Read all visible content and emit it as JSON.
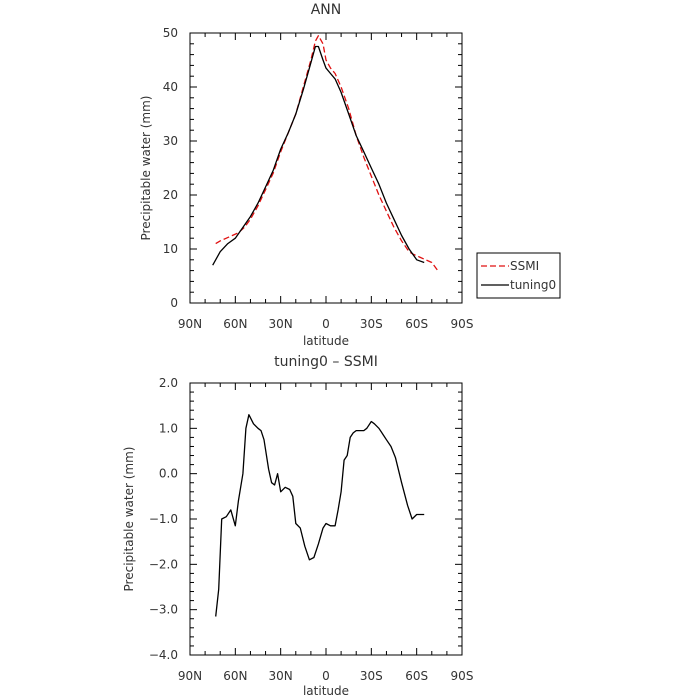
{
  "chart_data": [
    {
      "type": "line",
      "title": "ANN",
      "xlabel": "latitude",
      "ylabel": "Precipitable water (mm)",
      "xlim": [
        90,
        -90
      ],
      "ylim": [
        0,
        50
      ],
      "yticks": [
        "0",
        "10",
        "20",
        "30",
        "40",
        "50"
      ],
      "xtick_values": [
        90,
        60,
        30,
        0,
        -30,
        -60,
        -90
      ],
      "xticks": [
        "90N",
        "60N",
        "30N",
        "0",
        "30S",
        "60S",
        "90S"
      ],
      "grid": false,
      "legend": "right",
      "series": [
        {
          "name": "SSMI",
          "color": "#e01010",
          "dash": "dashed",
          "x": [
            73,
            70,
            66,
            62,
            58,
            54,
            50,
            45,
            40,
            35,
            30,
            25,
            20,
            15,
            10,
            7,
            5,
            2,
            0,
            -3,
            -6,
            -10,
            -15,
            -20,
            -25,
            -30,
            -35,
            -40,
            -45,
            -50,
            -55,
            -58,
            -62,
            -66,
            -70,
            -74
          ],
          "y": [
            11,
            11.5,
            12,
            12.5,
            13,
            14,
            15.5,
            18,
            21,
            24,
            28,
            31.5,
            35,
            40,
            45,
            48.5,
            49.5,
            48,
            45,
            43.5,
            42.5,
            40,
            36,
            31,
            27,
            23.5,
            20,
            17,
            14,
            11.5,
            9.5,
            9,
            8.5,
            8,
            7.5,
            6
          ]
        },
        {
          "name": "tuning0",
          "color": "#000000",
          "dash": "solid",
          "x": [
            75,
            70,
            65,
            60,
            55,
            50,
            45,
            40,
            35,
            30,
            25,
            20,
            15,
            10,
            7,
            5,
            2,
            0,
            -3,
            -6,
            -10,
            -15,
            -20,
            -25,
            -30,
            -35,
            -40,
            -45,
            -50,
            -55,
            -60,
            -65
          ],
          "y": [
            7,
            9.5,
            11,
            12,
            14,
            16,
            18.5,
            21.5,
            24.5,
            28.5,
            31.5,
            35,
            39.5,
            44.5,
            47.5,
            47.5,
            45,
            43.5,
            42.5,
            41.5,
            39,
            35,
            31,
            28,
            25,
            22,
            18.5,
            15.5,
            12.5,
            10,
            8,
            7.5
          ]
        }
      ]
    },
    {
      "type": "line",
      "title": "tuning0 – SSMI",
      "xlabel": "latitude",
      "ylabel": "Precipitable water (mm)",
      "xlim": [
        90,
        -90
      ],
      "ylim": [
        -4.0,
        2.0
      ],
      "yticks": [
        "−4.0",
        "−3.0",
        "−2.0",
        "−1.0",
        "0.0",
        "1.0",
        "2.0"
      ],
      "xtick_values": [
        90,
        60,
        30,
        0,
        -30,
        -60,
        -90
      ],
      "xticks": [
        "90N",
        "60N",
        "30N",
        "0",
        "30S",
        "60S",
        "90S"
      ],
      "grid": false,
      "series": [
        {
          "color": "#000000",
          "x": [
            73,
            71,
            69,
            66,
            63,
            60,
            58,
            55,
            53,
            51,
            48,
            45,
            43,
            41,
            38,
            36,
            34,
            32,
            30,
            27,
            24,
            22,
            20,
            17,
            14,
            11,
            8,
            5,
            2,
            0,
            -3,
            -6,
            -8,
            -10,
            -12,
            -14,
            -16,
            -18,
            -20,
            -23,
            -25,
            -27,
            -30,
            -32,
            -35,
            -38,
            -40,
            -43,
            -46,
            -50,
            -54,
            -57,
            -60,
            -63,
            -65
          ],
          "y": [
            -3.15,
            -2.55,
            -1.0,
            -0.95,
            -0.8,
            -1.15,
            -0.6,
            0.0,
            1.0,
            1.3,
            1.1,
            1.0,
            0.95,
            0.75,
            0.1,
            -0.2,
            -0.25,
            0.0,
            -0.4,
            -0.3,
            -0.35,
            -0.5,
            -1.1,
            -1.2,
            -1.6,
            -1.9,
            -1.85,
            -1.55,
            -1.2,
            -1.1,
            -1.15,
            -1.15,
            -0.8,
            -0.4,
            0.3,
            0.4,
            0.8,
            0.9,
            0.95,
            0.95,
            0.95,
            1.0,
            1.15,
            1.1,
            1.0,
            0.85,
            0.75,
            0.6,
            0.35,
            -0.2,
            -0.7,
            -1.0,
            -0.9,
            -0.9,
            -0.9
          ]
        }
      ]
    }
  ]
}
